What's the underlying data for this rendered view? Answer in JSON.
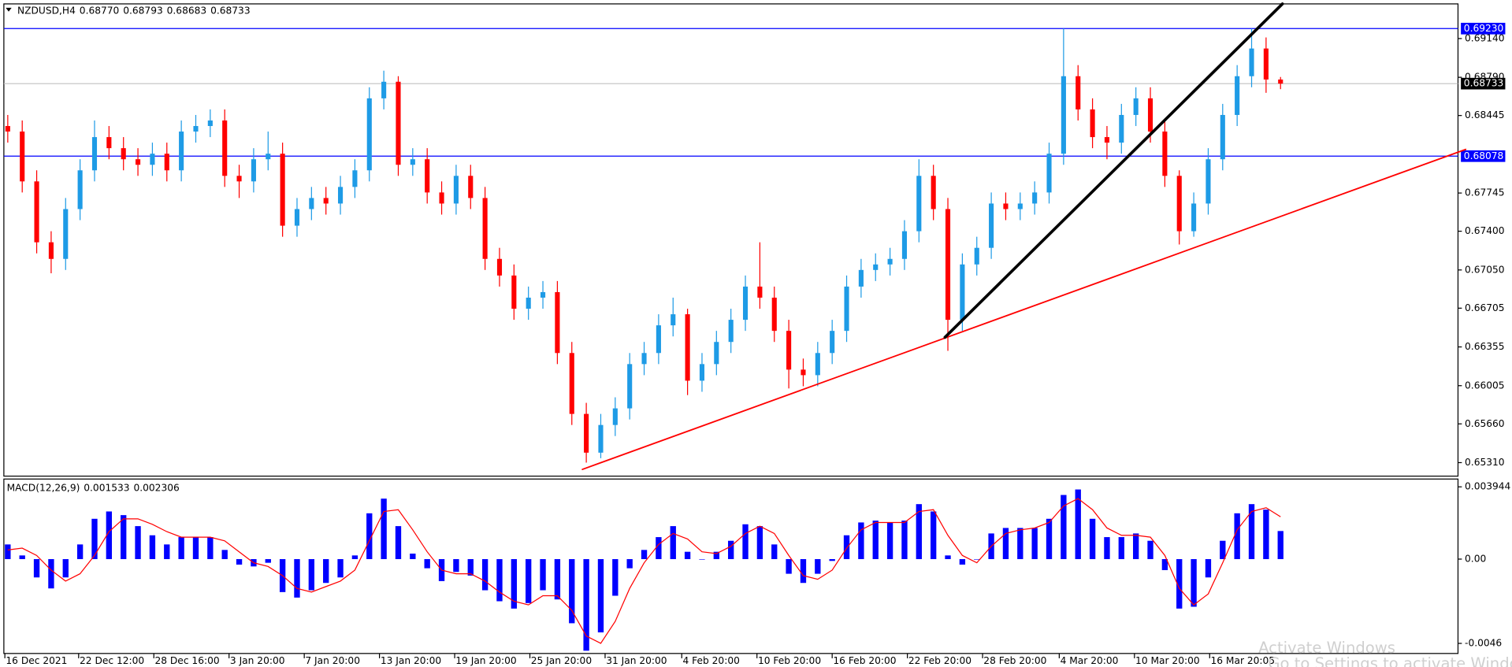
{
  "chart_data": [
    {
      "type": "candlestick",
      "title": "NZDUSD,H4",
      "header_values": [
        "0.68770",
        "0.68793",
        "0.68683",
        "0.68733"
      ],
      "up_color": "#1e9be6",
      "down_color": "#ff0000",
      "open": [
        0.6835,
        0.683,
        0.6785,
        0.673,
        0.6715,
        0.676,
        0.6795,
        0.6825,
        0.6815,
        0.6805,
        0.68,
        0.681,
        0.6795,
        0.683,
        0.6835,
        0.684,
        0.679,
        0.6785,
        0.6805,
        0.681,
        0.6745,
        0.676,
        0.677,
        0.6765,
        0.678,
        0.6795,
        0.686,
        0.6875,
        0.68,
        0.6805,
        0.6775,
        0.6765,
        0.679,
        0.677,
        0.6715,
        0.67,
        0.667,
        0.668,
        0.6685,
        0.663,
        0.6575,
        0.654,
        0.6565,
        0.658,
        0.662,
        0.663,
        0.6655,
        0.6665,
        0.6605,
        0.662,
        0.664,
        0.666,
        0.669,
        0.668,
        0.665,
        0.6615,
        0.661,
        0.663,
        0.665,
        0.669,
        0.6705,
        0.671,
        0.6715,
        0.674,
        0.679,
        0.676,
        0.666,
        0.671,
        0.6725,
        0.6765,
        0.676,
        0.6765,
        0.6775,
        0.681,
        0.688,
        0.685,
        0.6825,
        0.682,
        0.6845,
        0.686,
        0.683,
        0.679,
        0.674,
        0.6765,
        0.6805,
        0.6845,
        0.688,
        0.6905,
        0.6877
      ],
      "high": [
        0.6845,
        0.684,
        0.6795,
        0.674,
        0.677,
        0.6805,
        0.684,
        0.6835,
        0.6825,
        0.6815,
        0.682,
        0.682,
        0.684,
        0.6845,
        0.685,
        0.685,
        0.68,
        0.6815,
        0.683,
        0.682,
        0.677,
        0.678,
        0.678,
        0.679,
        0.6805,
        0.687,
        0.6885,
        0.688,
        0.6815,
        0.6815,
        0.6785,
        0.68,
        0.68,
        0.678,
        0.6725,
        0.671,
        0.669,
        0.6695,
        0.6695,
        0.664,
        0.6585,
        0.6575,
        0.659,
        0.663,
        0.664,
        0.6665,
        0.668,
        0.667,
        0.663,
        0.665,
        0.667,
        0.67,
        0.673,
        0.669,
        0.666,
        0.6625,
        0.664,
        0.666,
        0.67,
        0.6715,
        0.672,
        0.6725,
        0.675,
        0.6805,
        0.68,
        0.677,
        0.672,
        0.6735,
        0.6775,
        0.6775,
        0.6775,
        0.6785,
        0.682,
        0.6923,
        0.689,
        0.686,
        0.6835,
        0.6855,
        0.687,
        0.687,
        0.684,
        0.6795,
        0.6775,
        0.6815,
        0.6855,
        0.689,
        0.6923,
        0.6915,
        0.68793
      ],
      "low": [
        0.682,
        0.6775,
        0.672,
        0.6702,
        0.6705,
        0.675,
        0.6785,
        0.6805,
        0.6795,
        0.679,
        0.679,
        0.6785,
        0.6785,
        0.682,
        0.6825,
        0.678,
        0.677,
        0.6775,
        0.6795,
        0.6735,
        0.6735,
        0.675,
        0.6755,
        0.6755,
        0.677,
        0.6785,
        0.685,
        0.679,
        0.679,
        0.6765,
        0.6755,
        0.6755,
        0.676,
        0.6705,
        0.669,
        0.666,
        0.666,
        0.667,
        0.662,
        0.6565,
        0.6531,
        0.6535,
        0.6555,
        0.657,
        0.661,
        0.662,
        0.6645,
        0.6592,
        0.6595,
        0.661,
        0.663,
        0.665,
        0.667,
        0.664,
        0.6598,
        0.66,
        0.66,
        0.662,
        0.664,
        0.668,
        0.6695,
        0.67,
        0.6705,
        0.673,
        0.675,
        0.6632,
        0.665,
        0.67,
        0.6715,
        0.675,
        0.675,
        0.6755,
        0.6765,
        0.68,
        0.684,
        0.6815,
        0.6805,
        0.681,
        0.6835,
        0.682,
        0.678,
        0.6728,
        0.6735,
        0.6755,
        0.6795,
        0.6835,
        0.687,
        0.6865,
        0.68683
      ],
      "close": [
        0.683,
        0.6785,
        0.673,
        0.6715,
        0.676,
        0.6795,
        0.6825,
        0.6815,
        0.6805,
        0.68,
        0.681,
        0.6795,
        0.683,
        0.6835,
        0.684,
        0.679,
        0.6785,
        0.6805,
        0.681,
        0.6745,
        0.676,
        0.677,
        0.6765,
        0.678,
        0.6795,
        0.686,
        0.6875,
        0.68,
        0.6805,
        0.6775,
        0.6765,
        0.679,
        0.677,
        0.6715,
        0.67,
        0.667,
        0.668,
        0.6685,
        0.663,
        0.6575,
        0.654,
        0.6565,
        0.658,
        0.662,
        0.663,
        0.6655,
        0.6665,
        0.6605,
        0.662,
        0.664,
        0.666,
        0.669,
        0.668,
        0.665,
        0.6615,
        0.661,
        0.663,
        0.665,
        0.669,
        0.6705,
        0.671,
        0.6715,
        0.674,
        0.679,
        0.676,
        0.666,
        0.671,
        0.6725,
        0.6765,
        0.676,
        0.6765,
        0.6775,
        0.681,
        0.688,
        0.685,
        0.6825,
        0.682,
        0.6845,
        0.686,
        0.683,
        0.679,
        0.674,
        0.6765,
        0.6805,
        0.6845,
        0.688,
        0.6905,
        0.6877,
        0.68733
      ],
      "xlim": [
        -0.27,
        100.27
      ],
      "xticks": [
        {
          "value": -0.2,
          "label": "16 Dec 2021"
        },
        {
          "value": 4.9,
          "label": "22 Dec 12:00"
        },
        {
          "value": 10.1,
          "label": "28 Dec 16:00"
        },
        {
          "value": 15.3,
          "label": "3 Jan 20:00"
        },
        {
          "value": 20.5,
          "label": "7 Jan 20:00"
        },
        {
          "value": 25.7,
          "label": "13 Jan 20:00"
        },
        {
          "value": 30.9,
          "label": "19 Jan 20:00"
        },
        {
          "value": 36.1,
          "label": "25 Jan 20:00"
        },
        {
          "value": 41.3,
          "label": "31 Jan 20:00"
        },
        {
          "value": 46.6,
          "label": "4 Feb 20:00"
        },
        {
          "value": 51.8,
          "label": "10 Feb 20:00"
        },
        {
          "value": 57.0,
          "label": "16 Feb 20:00"
        },
        {
          "value": 62.2,
          "label": "22 Feb 20:00"
        },
        {
          "value": 67.4,
          "label": "28 Feb 20:00"
        },
        {
          "value": 72.7,
          "label": "4 Mar 20:00"
        },
        {
          "value": 77.9,
          "label": "10 Mar 20:00"
        },
        {
          "value": 83.1,
          "label": "16 Mar 20:05"
        }
      ],
      "ylim": [
        0.65188,
        0.69453
      ],
      "yticks": [
        {
          "value": 0.6914,
          "label": "0.69140"
        },
        {
          "value": 0.6879,
          "label": "0.68790"
        },
        0.68445,
        0.67745,
        {
          "value": 0.674,
          "label": "0.67400"
        },
        {
          "value": 0.6705,
          "label": "0.67050"
        },
        0.66705,
        0.66355,
        0.66005,
        {
          "value": 0.6566,
          "label": "0.65660"
        },
        {
          "value": 0.6531,
          "label": "0.65310"
        }
      ],
      "hlines": [
        {
          "value": 0.68733,
          "label": "0.68733",
          "color": "#c0c0c0",
          "label_bg": "#000000"
        },
        {
          "value": 0.6923,
          "label": "0.69230",
          "color": "#0000ff",
          "label_bg": "#0000ff"
        },
        {
          "value": 0.68078,
          "label": "0.68078",
          "color": "#0000ff",
          "label_bg": "#0000ff"
        }
      ],
      "trendlines": [
        {
          "x1": 39.73,
          "y1": 0.65249,
          "x2": 100.8,
          "y2": 0.68139,
          "color": "#ff0000",
          "width": 1.5
        },
        {
          "x1": 64.8,
          "y1": 0.66442,
          "x2": 88.13,
          "y2": 0.69453,
          "color": "#000000",
          "width": 3
        }
      ]
    },
    {
      "type": "macd",
      "title": "MACD(12,26,9)",
      "series": [
        {
          "color": "#0000ff",
          "values": [
            0.0008,
            0.0002,
            -0.001,
            -0.0016,
            -0.001,
            0.0008,
            0.0022,
            0.0026,
            0.0024,
            0.0018,
            0.0013,
            0.0008,
            0.0012,
            0.0012,
            0.0012,
            0.0005,
            -0.0003,
            -0.0004,
            -0.0002,
            -0.0018,
            -0.0021,
            -0.0017,
            -0.0013,
            -0.001,
            0.0002,
            0.0025,
            0.0033,
            0.0018,
            0.0003,
            -0.0005,
            -0.0012,
            -0.0007,
            -0.0009,
            -0.0017,
            -0.0023,
            -0.0027,
            -0.0024,
            -0.0017,
            -0.0022,
            -0.0035,
            -0.005,
            -0.004,
            -0.002,
            -0.0005,
            0.0005,
            0.0012,
            0.0018,
            0.0004,
            0.0,
            0.0004,
            0.001,
            0.0019,
            0.0018,
            0.0008,
            -0.0008,
            -0.0013,
            -0.0008,
            -0.0001,
            0.0013,
            0.002,
            0.0021,
            0.002,
            0.0021,
            0.003,
            0.0026,
            0.0002,
            -0.0003,
            0.0,
            0.0014,
            0.0017,
            0.0017,
            0.0017,
            0.0022,
            0.0035,
            0.0038,
            0.0022,
            0.0012,
            0.0012,
            0.0014,
            0.001,
            -0.0006,
            -0.0027,
            -0.0026,
            -0.001,
            0.001,
            0.0025,
            0.003,
            0.0027,
            0.001533
          ]
        },
        {
          "color": "#ff0000",
          "values": [
            0.0005,
            0.0006,
            0.0002,
            -0.0006,
            -0.0012,
            -0.0008,
            0.0002,
            0.0015,
            0.0022,
            0.0022,
            0.0019,
            0.0015,
            0.0012,
            0.0012,
            0.0012,
            0.001,
            0.0004,
            -0.0002,
            -0.0004,
            -0.0009,
            -0.0016,
            -0.0018,
            -0.0015,
            -0.0012,
            -0.0006,
            0.001,
            0.0026,
            0.0027,
            0.0016,
            0.0004,
            -0.0006,
            -0.0008,
            -0.0008,
            -0.0012,
            -0.0018,
            -0.0023,
            -0.0025,
            -0.002,
            -0.002,
            -0.0028,
            -0.0042,
            -0.0046,
            -0.0034,
            -0.0016,
            -0.0002,
            0.0008,
            0.0014,
            0.0011,
            0.0004,
            0.0003,
            0.0007,
            0.0014,
            0.0018,
            0.0014,
            0.0002,
            -0.0009,
            -0.0011,
            -0.0006,
            0.0006,
            0.0016,
            0.002,
            0.002,
            0.002,
            0.0026,
            0.0027,
            0.0013,
            0.0002,
            -0.0002,
            0.0007,
            0.0014,
            0.0016,
            0.0017,
            0.002,
            0.0029,
            0.0033,
            0.0027,
            0.0017,
            0.0013,
            0.0013,
            0.0012,
            0.0002,
            -0.0016,
            -0.0025,
            -0.0019,
            -0.0002,
            0.0016,
            0.0026,
            0.0028,
            0.002306
          ]
        }
      ],
      "ylim": [
        -0.00515,
        0.00437
      ],
      "yticks": [
        0.003944,
        {
          "value": 0,
          "label": "0.00"
        },
        -0.0046
      ]
    }
  ],
  "watermark": [
    "Activate Windows",
    "Go to Settings to activate Windows."
  ]
}
